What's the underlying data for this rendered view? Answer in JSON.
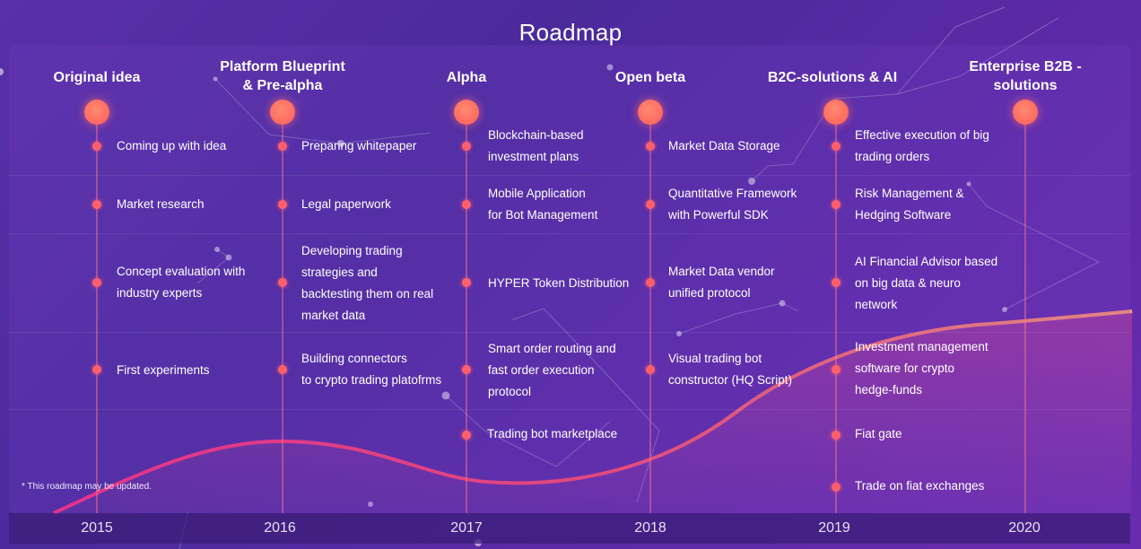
{
  "title": "Roadmap",
  "footnote": "* This roadmap may be updated.",
  "accent": "#ff5f6a",
  "columns": [
    {
      "year": "2015",
      "title": "Original idea",
      "items": [
        "Coming up with idea",
        "Market research",
        "Concept evaluation with\nindustry experts",
        "First experiments"
      ]
    },
    {
      "year": "2016",
      "title": "Platform Blueprint\n& Pre-alpha",
      "items": [
        "Preparing whitepaper",
        "Legal paperwork",
        "Developing trading\nstrategies and\nbacktesting them on real\nmarket data",
        "Building connectors\nto crypto trading platofrms"
      ]
    },
    {
      "year": "2017",
      "title": "Alpha",
      "items": [
        "Blockchain-based\ninvestment plans",
        "Mobile Application\nfor Bot Management",
        "HYPER Token Distribution",
        "Smart order routing and\nfast order execution\nprotocol",
        "Trading bot marketplace"
      ]
    },
    {
      "year": "2018",
      "title": "Open beta",
      "items": [
        "Market Data Storage",
        "Quantitative Framework\nwith Powerful SDK",
        "Market Data vendor\nunified protocol",
        "Visual trading bot\nconstructor (HQ Script)"
      ]
    },
    {
      "year": "2019",
      "title": "B2C-solutions & AI",
      "items": [
        "Effective execution of big\ntrading orders",
        "Risk Management &\nHedging Software",
        "AI Financial Advisor based\non big data & neuro\nnetwork",
        "Investment management\nsoftware for crypto\nhedge-funds",
        "Fiat gate",
        "Trade on fiat exchanges"
      ]
    },
    {
      "year": "2020",
      "title": "Enterprise B2B -\nsolutions",
      "items": []
    }
  ]
}
